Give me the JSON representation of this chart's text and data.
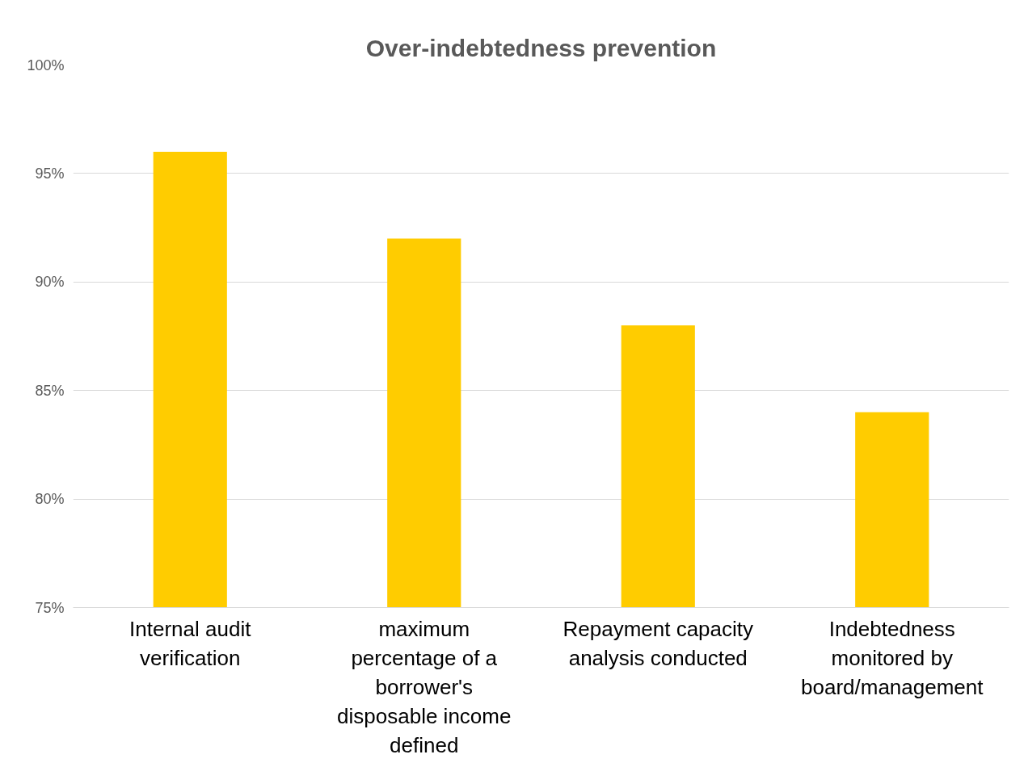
{
  "chart_data": {
    "type": "bar",
    "title": "Over-indebtedness prevention",
    "categories": [
      "Internal audit verification",
      "maximum percentage of a borrower's disposable income defined",
      "Repayment capacity analysis conducted",
      "Indebtedness monitored by board/management"
    ],
    "series": [
      {
        "color": "#ffcc00",
        "values": [
          96,
          92,
          88,
          84
        ]
      }
    ],
    "ylim": [
      75,
      100
    ],
    "yticks": [
      {
        "value": 75,
        "label": "75%"
      },
      {
        "value": 80,
        "label": "80%"
      },
      {
        "value": 85,
        "label": "85%"
      },
      {
        "value": 90,
        "label": "90%"
      },
      {
        "value": 95,
        "label": "95%"
      },
      {
        "value": 100,
        "label": "100%"
      }
    ],
    "grid": "y"
  }
}
